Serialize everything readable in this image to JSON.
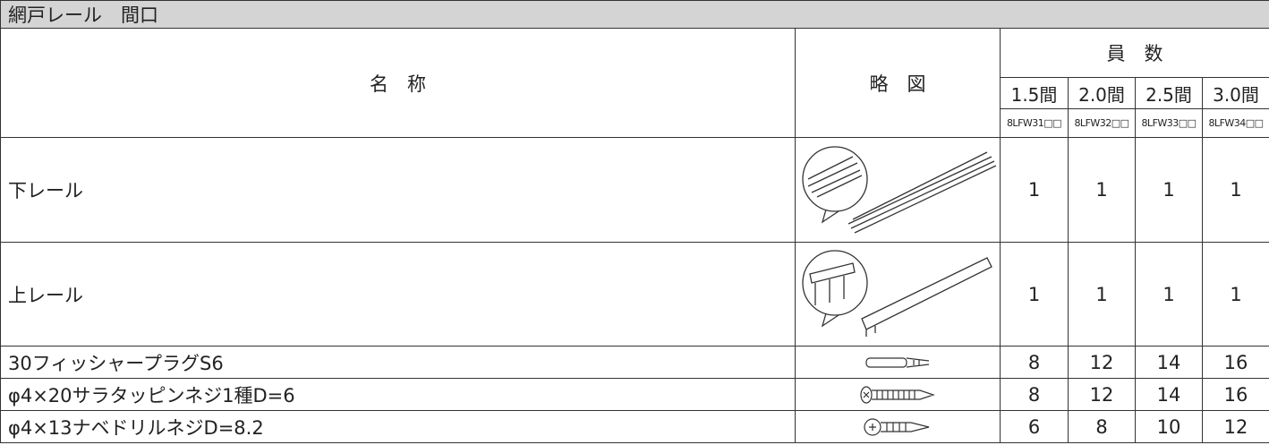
{
  "title": "網戸レール　間口",
  "header": {
    "name": "名　称",
    "diagram": "略　図",
    "count": "員　数",
    "sizes": [
      "1.5間",
      "2.0間",
      "2.5間",
      "3.0間"
    ],
    "models": [
      "8LFW31□□",
      "8LFW32□□",
      "8LFW33□□",
      "8LFW34□□"
    ]
  },
  "rows": [
    {
      "name": "下レール",
      "counts": [
        1,
        1,
        1,
        1
      ]
    },
    {
      "name": "上レール",
      "counts": [
        1,
        1,
        1,
        1
      ]
    },
    {
      "name": "30フィッシャープラグS6",
      "counts": [
        8,
        12,
        14,
        16
      ]
    },
    {
      "name": "φ4×20サラタッピンネジ1種D=6",
      "counts": [
        8,
        12,
        14,
        16
      ]
    },
    {
      "name": "φ4×13ナベドリルネジD=8.2",
      "counts": [
        6,
        8,
        10,
        12
      ]
    }
  ]
}
